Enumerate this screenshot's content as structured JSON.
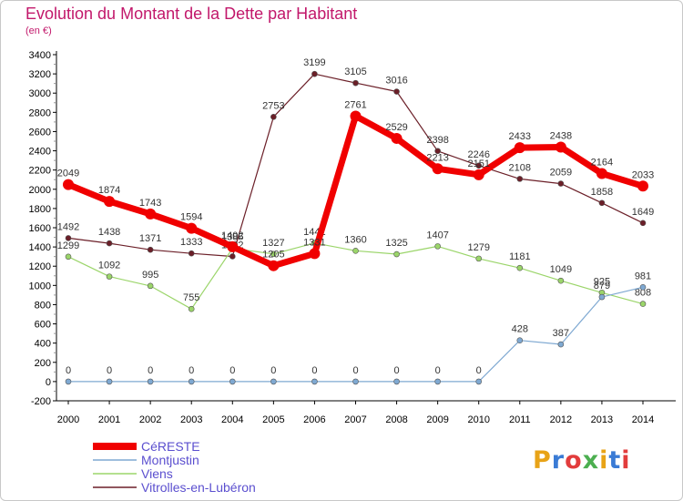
{
  "title": "Evolution du Montant de la Dette par Habitant",
  "subtitle": "(en €)",
  "logo": {
    "text": "Proxiti",
    "colors": [
      "#e8a317",
      "#3a7bd5",
      "#e23c3c",
      "#4caf50",
      "#e8a317",
      "#3a7bd5",
      "#e23c3c"
    ]
  },
  "chart_data": {
    "type": "line",
    "title": "Evolution du Montant de la Dette par Habitant",
    "subtitle": "(en €)",
    "x": [
      "2000",
      "2001",
      "2002",
      "2003",
      "2004",
      "2005",
      "2006",
      "2007",
      "2008",
      "2009",
      "2010",
      "2011",
      "2012",
      "2013",
      "2014"
    ],
    "ylim": [
      -200,
      3400
    ],
    "yticks": [
      "-200",
      "0",
      "200",
      "400",
      "600",
      "800",
      "1000",
      "1200",
      "1400",
      "1600",
      "1800",
      "2000",
      "2200",
      "2400",
      "2600",
      "2800",
      "3000",
      "3200",
      "3400"
    ],
    "grid": false,
    "legend": "bottom-left",
    "series": [
      {
        "name": "Vitrolles-en-Lubéron",
        "color": "#6b1f28",
        "values": [
          1492,
          1438,
          1371,
          1333,
          1302,
          2753,
          3199,
          3105,
          3016,
          2398,
          2246,
          2108,
          2059,
          1858,
          1649
        ],
        "labels": [
          "1492",
          "1438",
          "1371",
          "1333",
          "1302",
          "2753",
          "3199",
          "3105",
          "3016",
          "2398",
          "2246",
          "2108",
          "2059",
          "1858",
          "1649"
        ]
      },
      {
        "name": "Viens",
        "color": "#9bd56a",
        "values": [
          1299,
          1092,
          995,
          755,
          1385,
          1327,
          1441,
          1360,
          1325,
          1407,
          1279,
          1181,
          1049,
          925,
          808
        ],
        "labels": [
          "1299",
          "1092",
          "995",
          "755",
          "1385",
          "1327",
          "1441",
          "1360",
          "1325",
          "1407",
          "1279",
          "1181",
          "1049",
          "925",
          "808"
        ]
      },
      {
        "name": "Montjustin",
        "color": "#7fa9d2",
        "values": [
          0,
          0,
          0,
          0,
          0,
          0,
          0,
          0,
          0,
          0,
          0,
          428,
          387,
          879,
          981
        ],
        "labels": [
          "0",
          "0",
          "0",
          "0",
          "0",
          "0",
          "0",
          "0",
          "0",
          "0",
          "0",
          "428",
          "387",
          "879",
          "981"
        ]
      },
      {
        "name": "CéRESTE",
        "color": "#f00000",
        "values": [
          2049,
          1874,
          1743,
          1594,
          1402,
          1205,
          1331,
          2761,
          2529,
          2213,
          2151,
          2433,
          2438,
          2164,
          2033
        ],
        "labels": [
          "2049",
          "1874",
          "1743",
          "1594",
          "1402",
          "1205",
          "1331",
          "2761",
          "2529",
          "2213",
          "2151",
          "2433",
          "2438",
          "2164",
          "2033"
        ]
      }
    ]
  }
}
